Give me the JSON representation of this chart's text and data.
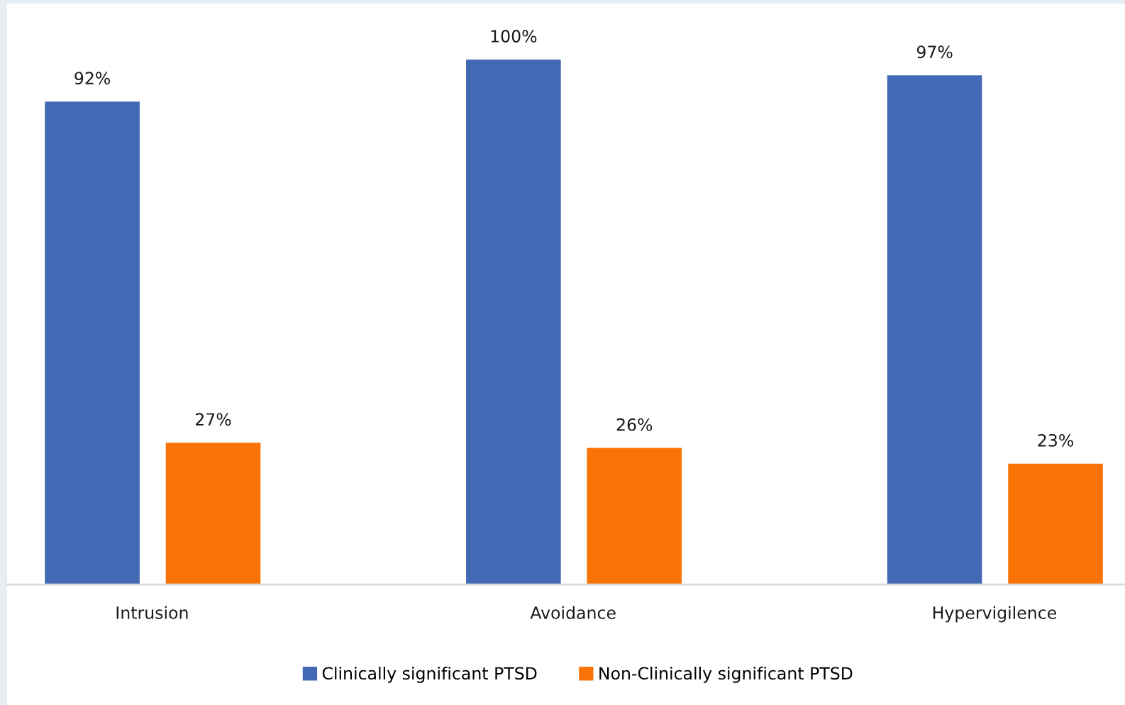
{
  "chart_data": {
    "type": "bar",
    "categories": [
      "Intrusion",
      "Avoidance",
      "Hypervigilence"
    ],
    "series": [
      {
        "name": "Clinically significant PTSD",
        "color": "#4169b4",
        "values": [
          92,
          100,
          97
        ],
        "value_labels": [
          "92%",
          "100%",
          "97%"
        ]
      },
      {
        "name": "Non-Clinically significant PTSD",
        "color": "#f97306",
        "values": [
          27,
          26,
          23
        ],
        "value_labels": [
          "27%",
          "26%",
          "23%"
        ]
      }
    ],
    "legend": "bottom"
  }
}
